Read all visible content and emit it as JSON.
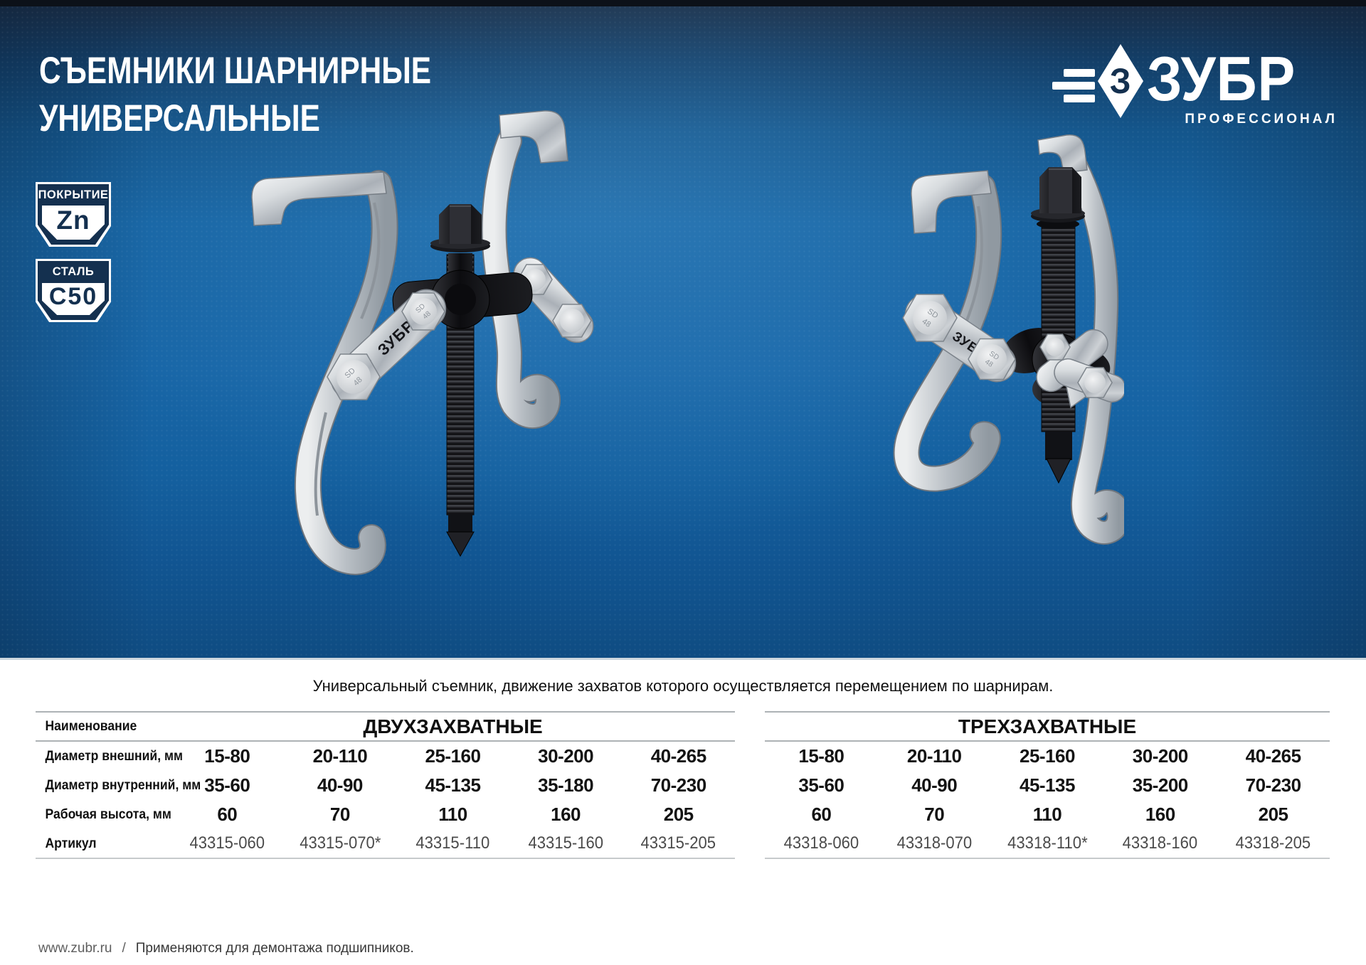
{
  "header": {
    "title_line1": "СЪЕМНИКИ ШАРНИРНЫЕ",
    "title_line2": "УНИВЕРСАЛЬНЫЕ"
  },
  "brand": {
    "name": "ЗУБР",
    "tagline": "ПРОФЕССИОНАЛ",
    "icon_letter": "З"
  },
  "badges": [
    {
      "header": "ПОКРЫТИЕ",
      "value": "Zn"
    },
    {
      "header": "СТАЛЬ",
      "value": "С50"
    }
  ],
  "description": "Универсальный съемник, движение захватов которого осуществляется перемещением по шарнирам.",
  "tool_markings": {
    "brand": "ЗУБР",
    "bolt_top": "SD",
    "bolt_bottom": "48"
  },
  "spec_tables": {
    "row_labels": {
      "name": "Наименование",
      "outer": "Диаметр внешний, мм",
      "inner": "Диаметр внутренний, мм",
      "work_height": "Рабочая высота, мм",
      "sku": "Артикул"
    },
    "groups": [
      {
        "header": "ДВУХЗАХВАТНЫЕ",
        "columns": [
          {
            "outer": "15-80",
            "inner": "35-60",
            "work_height": "60",
            "sku": "43315-060"
          },
          {
            "outer": "20-110",
            "inner": "40-90",
            "work_height": "70",
            "sku": "43315-070*"
          },
          {
            "outer": "25-160",
            "inner": "45-135",
            "work_height": "110",
            "sku": "43315-110"
          },
          {
            "outer": "30-200",
            "inner": "35-180",
            "work_height": "160",
            "sku": "43315-160"
          },
          {
            "outer": "40-265",
            "inner": "70-230",
            "work_height": "205",
            "sku": "43315-205"
          }
        ]
      },
      {
        "header": "ТРЕХЗАХВАТНЫЕ",
        "columns": [
          {
            "outer": "15-80",
            "inner": "35-60",
            "work_height": "60",
            "sku": "43318-060"
          },
          {
            "outer": "20-110",
            "inner": "40-90",
            "work_height": "70",
            "sku": "43318-070"
          },
          {
            "outer": "25-160",
            "inner": "45-135",
            "work_height": "110",
            "sku": "43318-110*"
          },
          {
            "outer": "30-200",
            "inner": "35-200",
            "work_height": "160",
            "sku": "43318-160"
          },
          {
            "outer": "40-265",
            "inner": "70-230",
            "work_height": "205",
            "sku": "43318-205"
          }
        ]
      }
    ]
  },
  "footer": {
    "site": "www.zubr.ru",
    "separator": "/",
    "note": "Применяются для демонтажа подшипников."
  },
  "colors": {
    "hero_blue": "#1866a7",
    "navy": "#14304f",
    "table_line": "#adb2b5",
    "sku_text": "#4b4b4b"
  }
}
